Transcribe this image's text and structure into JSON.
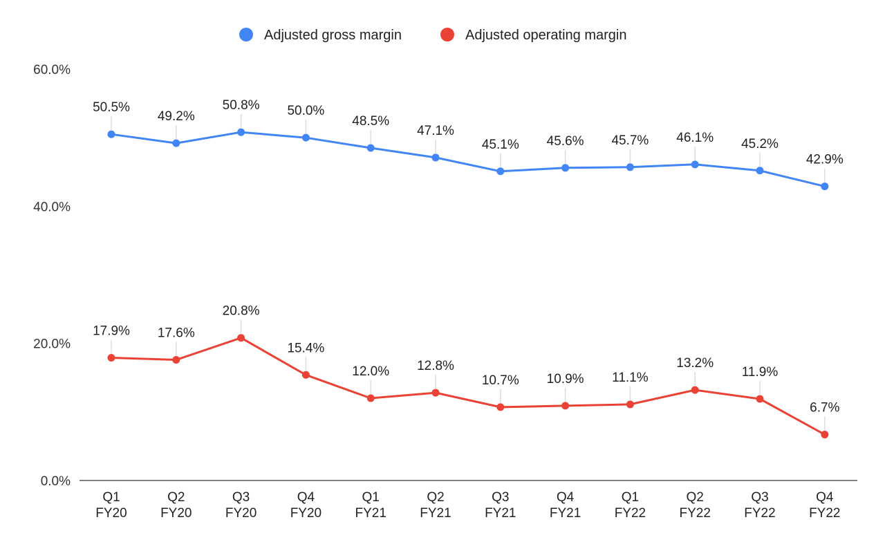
{
  "chart_data": {
    "type": "line",
    "title": "",
    "xlabel": "",
    "ylabel": "",
    "categories": [
      [
        "Q1",
        "FY20"
      ],
      [
        "Q2",
        "FY20"
      ],
      [
        "Q3",
        "FY20"
      ],
      [
        "Q4",
        "FY20"
      ],
      [
        "Q1",
        "FY21"
      ],
      [
        "Q2",
        "FY21"
      ],
      [
        "Q3",
        "FY21"
      ],
      [
        "Q4",
        "FY21"
      ],
      [
        "Q1",
        "FY22"
      ],
      [
        "Q2",
        "FY22"
      ],
      [
        "Q3",
        "FY22"
      ],
      [
        "Q4",
        "FY22"
      ]
    ],
    "ylim": [
      0,
      60
    ],
    "yticks": [
      {
        "value": 0,
        "label": "0.0%"
      },
      {
        "value": 20,
        "label": "20.0%"
      },
      {
        "value": 40,
        "label": "40.0%"
      },
      {
        "value": 60,
        "label": "60.0%"
      }
    ],
    "grid": false,
    "legend_position": "top-center",
    "series": [
      {
        "name": "Adjusted gross margin",
        "color": "#4285f4",
        "values": [
          50.5,
          49.2,
          50.8,
          50.0,
          48.5,
          47.1,
          45.1,
          45.6,
          45.7,
          46.1,
          45.2,
          42.9
        ],
        "labels": [
          "50.5%",
          "49.2%",
          "50.8%",
          "50.0%",
          "48.5%",
          "47.1%",
          "45.1%",
          "45.6%",
          "45.7%",
          "46.1%",
          "45.2%",
          "42.9%"
        ]
      },
      {
        "name": "Adjusted operating margin",
        "color": "#ea4335",
        "values": [
          17.9,
          17.6,
          20.8,
          15.4,
          12.0,
          12.8,
          10.7,
          10.9,
          11.1,
          13.2,
          11.9,
          6.7
        ],
        "labels": [
          "17.9%",
          "17.6%",
          "20.8%",
          "15.4%",
          "12.0%",
          "12.8%",
          "10.7%",
          "10.9%",
          "11.1%",
          "13.2%",
          "11.9%",
          "6.7%"
        ]
      }
    ]
  }
}
